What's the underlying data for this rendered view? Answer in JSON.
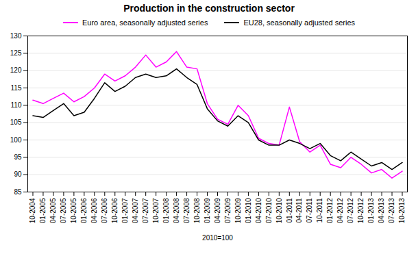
{
  "chart_data": {
    "type": "line",
    "title": "Production in the construction sector",
    "xlabel": "2010=100",
    "categories": [
      "10-2004",
      "01-2005",
      "04-2005",
      "07-2005",
      "10-2005",
      "01-2006",
      "04-2006",
      "07-2006",
      "10-2006",
      "01-2007",
      "04-2007",
      "07-2007",
      "10-2007",
      "01-2008",
      "04-2008",
      "07-2008",
      "10-2008",
      "01-2009",
      "04-2009",
      "07-2009",
      "10-2009",
      "01-2010",
      "04-2010",
      "07-2010",
      "10-2010",
      "01-2011",
      "04-2011",
      "07-2011",
      "10-2011",
      "01-2012",
      "04-2012",
      "07-2012",
      "10-2012",
      "01-2013",
      "04-2013",
      "07-2013",
      "10-2013"
    ],
    "series": [
      {
        "name": "Euro area, seasonally adjusted series",
        "color": "#FF00FF",
        "values": [
          111.5,
          110.5,
          112.0,
          113.5,
          111.0,
          112.5,
          115.0,
          119.0,
          117.0,
          118.5,
          121.0,
          124.5,
          121.0,
          122.5,
          125.5,
          121.0,
          120.5,
          110.5,
          106.0,
          104.5,
          110.0,
          107.0,
          100.5,
          99.0,
          98.5,
          109.5,
          99.5,
          96.5,
          98.5,
          93.0,
          92.0,
          95.0,
          93.0,
          90.5,
          91.5,
          89.0,
          91.0
        ]
      },
      {
        "name": "EU28, seasonally adjusted series",
        "color": "#000000",
        "values": [
          107.0,
          106.5,
          108.5,
          110.5,
          107.0,
          108.0,
          112.0,
          116.5,
          114.0,
          115.5,
          118.0,
          119.0,
          118.0,
          118.5,
          120.5,
          118.0,
          116.0,
          109.0,
          105.5,
          104.0,
          107.0,
          105.0,
          100.0,
          98.5,
          98.5,
          100.0,
          99.0,
          97.5,
          99.0,
          95.5,
          94.0,
          96.5,
          94.5,
          92.5,
          93.5,
          91.5,
          93.5
        ]
      }
    ],
    "ylim": [
      85,
      130
    ],
    "yticks": [
      85,
      90,
      95,
      100,
      105,
      110,
      115,
      120,
      125,
      130
    ],
    "grid": true,
    "legend": "top"
  }
}
